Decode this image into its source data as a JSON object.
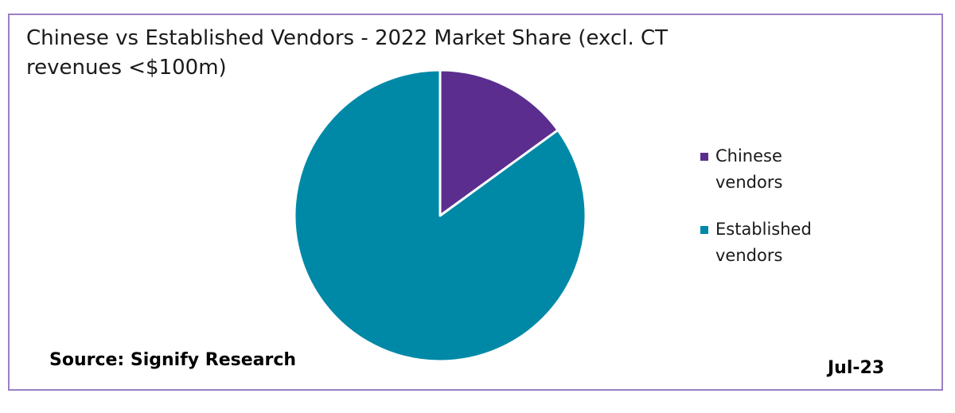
{
  "chart_data": {
    "type": "pie",
    "title": "Chinese vs Established Vendors - 2022 Market Share (excl. CT revenues <$100m)",
    "categories": [
      "Chinese vendors",
      "Established vendors"
    ],
    "values": [
      15,
      85
    ],
    "colors": [
      "#5b2d8e",
      "#0089a7"
    ],
    "legend_position": "right"
  },
  "footer": {
    "source": "Source: Signify Research",
    "date": "Jul-23"
  },
  "colors": {
    "border": "#9b7fc6",
    "slice_stroke": "#ffffff"
  }
}
